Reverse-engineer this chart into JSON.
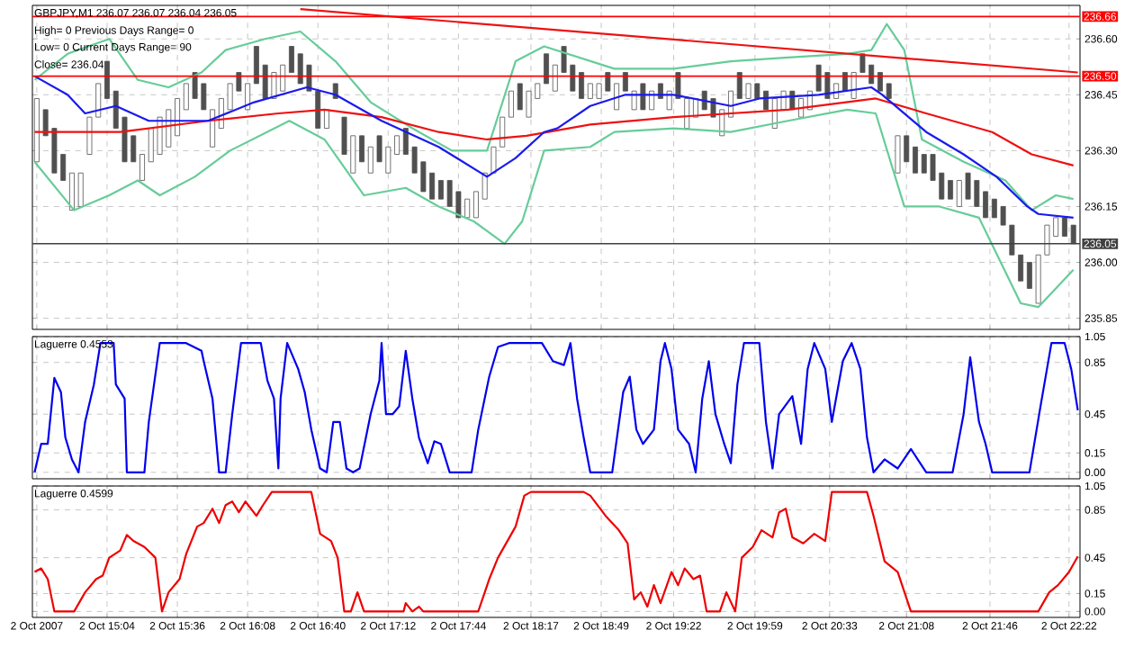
{
  "chart_data": [
    {
      "type": "candlestick",
      "title": "GBPJPY,M1  236.07 236.07 236.04 236.05",
      "annotations": [
        "High= 0   Previous Days Range= 0",
        "Low= 0   Current Days Range= 90",
        "Close= 236.04"
      ],
      "color": "#505050",
      "x": [
        "2007-10-02T14:32",
        "2007-10-02T14:36",
        "2007-10-02T14:40",
        "2007-10-02T14:44",
        "2007-10-02T14:48",
        "2007-10-02T14:52",
        "2007-10-02T14:56",
        "2007-10-02T15:00",
        "2007-10-02T15:04",
        "2007-10-02T15:08",
        "2007-10-02T15:12",
        "2007-10-02T15:16",
        "2007-10-02T15:20",
        "2007-10-02T15:24",
        "2007-10-02T15:28",
        "2007-10-02T15:32",
        "2007-10-02T15:36",
        "2007-10-02T15:40",
        "2007-10-02T15:44",
        "2007-10-02T15:48",
        "2007-10-02T15:52",
        "2007-10-02T15:56",
        "2007-10-02T16:00",
        "2007-10-02T16:04",
        "2007-10-02T16:08",
        "2007-10-02T16:12",
        "2007-10-02T16:16",
        "2007-10-02T16:20",
        "2007-10-02T16:24",
        "2007-10-02T16:28",
        "2007-10-02T16:32",
        "2007-10-02T16:36",
        "2007-10-02T16:40",
        "2007-10-02T16:44",
        "2007-10-02T16:48",
        "2007-10-02T16:52",
        "2007-10-02T16:56",
        "2007-10-02T17:00",
        "2007-10-02T17:04",
        "2007-10-02T17:08",
        "2007-10-02T17:12",
        "2007-10-02T17:16",
        "2007-10-02T17:20",
        "2007-10-02T17:24",
        "2007-10-02T17:28",
        "2007-10-02T17:32",
        "2007-10-02T17:36",
        "2007-10-02T17:40",
        "2007-10-02T17:44",
        "2007-10-02T17:48",
        "2007-10-02T17:52",
        "2007-10-02T17:56",
        "2007-10-02T18:00",
        "2007-10-02T18:04",
        "2007-10-02T18:08",
        "2007-10-02T18:12",
        "2007-10-02T18:16",
        "2007-10-02T18:20",
        "2007-10-02T18:24",
        "2007-10-02T18:28",
        "2007-10-02T18:32",
        "2007-10-02T18:36",
        "2007-10-02T18:40",
        "2007-10-02T18:44",
        "2007-10-02T18:48",
        "2007-10-02T18:52",
        "2007-10-02T18:56",
        "2007-10-02T19:00",
        "2007-10-02T19:04",
        "2007-10-02T19:08",
        "2007-10-02T19:12",
        "2007-10-02T19:16",
        "2007-10-02T19:20",
        "2007-10-02T19:24",
        "2007-10-02T19:28",
        "2007-10-02T19:32",
        "2007-10-02T19:36",
        "2007-10-02T19:40",
        "2007-10-02T19:44",
        "2007-10-02T19:48",
        "2007-10-02T19:52",
        "2007-10-02T19:56",
        "2007-10-02T20:00",
        "2007-10-02T20:04",
        "2007-10-02T20:08",
        "2007-10-02T20:12",
        "2007-10-02T20:16",
        "2007-10-02T20:20",
        "2007-10-02T20:24",
        "2007-10-02T20:28",
        "2007-10-02T20:32",
        "2007-10-02T20:36",
        "2007-10-02T20:40",
        "2007-10-02T20:44",
        "2007-10-02T20:48",
        "2007-10-02T20:52",
        "2007-10-02T20:56",
        "2007-10-02T21:00",
        "2007-10-02T21:04",
        "2007-10-02T21:08",
        "2007-10-02T21:12",
        "2007-10-02T21:16",
        "2007-10-02T21:20",
        "2007-10-02T21:24",
        "2007-10-02T21:28",
        "2007-10-02T21:32",
        "2007-10-02T21:36",
        "2007-10-02T21:40",
        "2007-10-02T21:44",
        "2007-10-02T21:48",
        "2007-10-02T21:52",
        "2007-10-02T21:56",
        "2007-10-02T22:00",
        "2007-10-02T22:04",
        "2007-10-02T22:08",
        "2007-10-02T22:12",
        "2007-10-02T22:16",
        "2007-10-02T22:20",
        "2007-10-02T22:24"
      ],
      "ohlc": [
        [
          236.27,
          236.44,
          236.27,
          236.44
        ],
        [
          236.41,
          236.41,
          236.34,
          236.34
        ],
        [
          236.36,
          236.36,
          236.24,
          236.24
        ],
        [
          236.29,
          236.29,
          236.22,
          236.22
        ],
        [
          236.14,
          236.24,
          236.14,
          236.24
        ],
        [
          236.15,
          236.24,
          236.15,
          236.24
        ],
        [
          236.29,
          236.39,
          236.29,
          236.39
        ],
        [
          236.39,
          236.48,
          236.39,
          236.48
        ],
        [
          236.54,
          236.54,
          236.44,
          236.44
        ],
        [
          236.46,
          236.46,
          236.36,
          236.36
        ],
        [
          236.39,
          236.39,
          236.27,
          236.27
        ],
        [
          236.34,
          236.34,
          236.27,
          236.27
        ],
        [
          236.22,
          236.29,
          236.22,
          236.29
        ],
        [
          236.27,
          236.36,
          236.27,
          236.36
        ],
        [
          236.29,
          236.39,
          236.29,
          236.39
        ],
        [
          236.31,
          236.41,
          236.31,
          236.41
        ],
        [
          236.34,
          236.44,
          236.34,
          236.44
        ],
        [
          236.41,
          236.48,
          236.41,
          236.48
        ],
        [
          236.51,
          236.51,
          236.44,
          236.44
        ],
        [
          236.48,
          236.48,
          236.41,
          236.41
        ],
        [
          236.31,
          236.41,
          236.31,
          236.41
        ],
        [
          236.36,
          236.44,
          236.36,
          236.44
        ],
        [
          236.41,
          236.48,
          236.41,
          236.48
        ],
        [
          236.51,
          236.51,
          236.46,
          236.46
        ],
        [
          236.41,
          236.48,
          236.41,
          236.48
        ],
        [
          236.58,
          236.58,
          236.48,
          236.48
        ],
        [
          236.53,
          236.53,
          236.44,
          236.44
        ],
        [
          236.44,
          236.51,
          236.44,
          236.51
        ],
        [
          236.46,
          236.53,
          236.46,
          236.53
        ],
        [
          236.58,
          236.58,
          236.51,
          236.51
        ],
        [
          236.56,
          236.56,
          236.48,
          236.48
        ],
        [
          236.53,
          236.53,
          236.46,
          236.46
        ],
        [
          236.46,
          236.46,
          236.36,
          236.36
        ],
        [
          236.36,
          236.41,
          236.36,
          236.41
        ],
        [
          236.48,
          236.48,
          236.44,
          236.44
        ],
        [
          236.39,
          236.39,
          236.29,
          236.29
        ],
        [
          236.24,
          236.34,
          236.24,
          236.34
        ],
        [
          236.34,
          236.34,
          236.27,
          236.27
        ],
        [
          236.24,
          236.31,
          236.24,
          236.31
        ],
        [
          236.34,
          236.34,
          236.27,
          236.27
        ],
        [
          236.24,
          236.31,
          236.24,
          236.31
        ],
        [
          236.29,
          236.34,
          236.29,
          236.34
        ],
        [
          236.36,
          236.36,
          236.29,
          236.29
        ],
        [
          236.31,
          236.31,
          236.24,
          236.24
        ],
        [
          236.27,
          236.27,
          236.19,
          236.19
        ],
        [
          236.24,
          236.24,
          236.17,
          236.17
        ],
        [
          236.22,
          236.22,
          236.17,
          236.17
        ],
        [
          236.22,
          236.22,
          236.15,
          236.15
        ],
        [
          236.19,
          236.19,
          236.12,
          236.12
        ],
        [
          236.12,
          236.17,
          236.12,
          236.17
        ],
        [
          236.12,
          236.19,
          236.12,
          236.19
        ],
        [
          236.17,
          236.24,
          236.17,
          236.24
        ],
        [
          236.24,
          236.31,
          236.24,
          236.31
        ],
        [
          236.31,
          236.39,
          236.31,
          236.39
        ],
        [
          236.39,
          236.46,
          236.39,
          236.46
        ],
        [
          236.48,
          236.48,
          236.41,
          236.41
        ],
        [
          236.39,
          236.46,
          236.39,
          236.46
        ],
        [
          236.44,
          236.48,
          236.44,
          236.48
        ],
        [
          236.56,
          236.56,
          236.48,
          236.48
        ],
        [
          236.46,
          236.53,
          236.46,
          236.53
        ],
        [
          236.58,
          236.58,
          236.51,
          236.51
        ],
        [
          236.53,
          236.53,
          236.46,
          236.46
        ],
        [
          236.51,
          236.51,
          236.44,
          236.44
        ],
        [
          236.44,
          236.48,
          236.44,
          236.48
        ],
        [
          236.44,
          236.48,
          236.44,
          236.48
        ],
        [
          236.51,
          236.51,
          236.46,
          236.46
        ],
        [
          236.41,
          236.48,
          236.41,
          236.48
        ],
        [
          236.51,
          236.51,
          236.46,
          236.46
        ],
        [
          236.41,
          236.46,
          236.41,
          236.46
        ],
        [
          236.48,
          236.48,
          236.41,
          236.41
        ],
        [
          236.41,
          236.46,
          236.41,
          236.46
        ],
        [
          236.48,
          236.48,
          236.44,
          236.44
        ],
        [
          236.41,
          236.46,
          236.41,
          236.46
        ],
        [
          236.51,
          236.51,
          236.44,
          236.44
        ],
        [
          236.36,
          236.44,
          236.36,
          236.44
        ],
        [
          236.39,
          236.44,
          236.39,
          236.44
        ],
        [
          236.46,
          236.46,
          236.41,
          236.41
        ],
        [
          236.44,
          236.44,
          236.39,
          236.39
        ],
        [
          236.34,
          236.41,
          236.34,
          236.41
        ],
        [
          236.39,
          236.46,
          236.39,
          236.46
        ],
        [
          236.51,
          236.51,
          236.44,
          236.44
        ],
        [
          236.44,
          236.48,
          236.44,
          236.48
        ],
        [
          236.48,
          236.48,
          236.44,
          236.44
        ],
        [
          236.46,
          236.46,
          236.41,
          236.41
        ],
        [
          236.36,
          236.44,
          236.36,
          236.44
        ],
        [
          236.41,
          236.46,
          236.41,
          236.46
        ],
        [
          236.46,
          236.46,
          236.41,
          236.41
        ],
        [
          236.39,
          236.44,
          236.39,
          236.44
        ],
        [
          236.41,
          236.46,
          236.41,
          236.46
        ],
        [
          236.53,
          236.53,
          236.46,
          236.46
        ],
        [
          236.51,
          236.51,
          236.44,
          236.44
        ],
        [
          236.44,
          236.48,
          236.44,
          236.48
        ],
        [
          236.51,
          236.51,
          236.46,
          236.46
        ],
        [
          236.44,
          236.51,
          236.44,
          236.51
        ],
        [
          236.56,
          236.56,
          236.51,
          236.51
        ],
        [
          236.53,
          236.53,
          236.48,
          236.48
        ],
        [
          236.51,
          236.51,
          236.46,
          236.46
        ],
        [
          236.48,
          236.48,
          236.44,
          236.44
        ],
        [
          236.24,
          236.34,
          236.24,
          236.34
        ],
        [
          236.34,
          236.34,
          236.27,
          236.27
        ],
        [
          236.31,
          236.31,
          236.24,
          236.24
        ],
        [
          236.29,
          236.29,
          236.24,
          236.24
        ],
        [
          236.29,
          236.29,
          236.22,
          236.22
        ],
        [
          236.24,
          236.24,
          236.17,
          236.17
        ],
        [
          236.22,
          236.22,
          236.17,
          236.17
        ],
        [
          236.15,
          236.22,
          236.15,
          236.22
        ],
        [
          236.24,
          236.24,
          236.17,
          236.17
        ],
        [
          236.22,
          236.22,
          236.15,
          236.15
        ],
        [
          236.19,
          236.19,
          236.12,
          236.12
        ],
        [
          236.17,
          236.17,
          236.12,
          236.12
        ],
        [
          236.15,
          236.15,
          236.1,
          236.1
        ],
        [
          236.1,
          236.1,
          236.02,
          236.02
        ],
        [
          236.02,
          236.02,
          235.95,
          235.95
        ],
        [
          236.0,
          236.0,
          235.93,
          235.93
        ],
        [
          235.89,
          236.02,
          235.89,
          236.02
        ],
        [
          236.02,
          236.1,
          236.02,
          236.1
        ],
        [
          236.07,
          236.12,
          236.07,
          236.12
        ],
        [
          236.12,
          236.12,
          236.07,
          236.07
        ],
        [
          236.1,
          236.1,
          236.05,
          236.05
        ]
      ],
      "series": [
        {
          "type": "line",
          "color": "#66cc99",
          "x": [
            "2007-10-02T14:31",
            "2007-10-02T14:46",
            "2007-10-02T15:05",
            "2007-10-02T15:18",
            "2007-10-02T15:32",
            "2007-10-02T15:47",
            "2007-10-02T15:58",
            "2007-10-02T16:16",
            "2007-10-02T16:32",
            "2007-10-02T16:48",
            "2007-10-02T17:04",
            "2007-10-02T17:23",
            "2007-10-02T17:41",
            "2007-10-02T17:57",
            "2007-10-02T18:10",
            "2007-10-02T18:23",
            "2007-10-02T18:55",
            "2007-10-02T19:22",
            "2007-10-02T19:48",
            "2007-10-02T20:14",
            "2007-10-02T20:41",
            "2007-10-02T20:52",
            "2007-10-02T20:59",
            "2007-10-02T21:07",
            "2007-10-02T21:15",
            "2007-10-02T21:34",
            "2007-10-02T21:53",
            "2007-10-02T22:05",
            "2007-10-02T22:16",
            "2007-10-02T22:24"
          ],
          "values": [
            236.49,
            236.56,
            236.6,
            236.49,
            236.47,
            236.51,
            236.57,
            236.6,
            236.62,
            236.54,
            236.43,
            236.36,
            236.3,
            236.3,
            236.54,
            236.58,
            236.52,
            236.52,
            236.54,
            236.55,
            236.56,
            236.57,
            236.64,
            236.57,
            236.33,
            236.27,
            236.22,
            236.14,
            236.18,
            236.17
          ]
        },
        {
          "type": "line",
          "color": "#66cc99",
          "x": [
            "2007-10-02T14:31",
            "2007-10-02T14:49",
            "2007-10-02T15:05",
            "2007-10-02T15:18",
            "2007-10-02T15:28",
            "2007-10-02T15:44",
            "2007-10-02T16:00",
            "2007-10-02T16:27",
            "2007-10-02T16:43",
            "2007-10-02T17:01",
            "2007-10-02T17:20",
            "2007-10-02T17:35",
            "2007-10-02T17:51",
            "2007-10-02T18:05",
            "2007-10-02T18:13",
            "2007-10-02T18:23",
            "2007-10-02T18:44",
            "2007-10-02T18:55",
            "2007-10-02T19:22",
            "2007-10-02T19:48",
            "2007-10-02T20:14",
            "2007-10-02T20:41",
            "2007-10-02T20:54",
            "2007-10-02T21:07",
            "2007-10-02T21:23",
            "2007-10-02T21:41",
            "2007-10-02T22:00",
            "2007-10-02T22:08",
            "2007-10-02T22:24"
          ],
          "values": [
            236.27,
            236.14,
            236.18,
            236.22,
            236.18,
            236.23,
            236.3,
            236.38,
            236.33,
            236.18,
            236.2,
            236.15,
            236.11,
            236.05,
            236.11,
            236.3,
            236.31,
            236.35,
            236.36,
            236.35,
            236.38,
            236.41,
            236.4,
            236.15,
            236.15,
            236.12,
            235.89,
            235.88,
            235.98
          ]
        },
        {
          "type": "line",
          "color": "#ee1111",
          "x": [
            "2007-10-02T14:31",
            "2007-10-02T15:10",
            "2007-10-02T15:50",
            "2007-10-02T16:22",
            "2007-10-02T16:43",
            "2007-10-02T17:09",
            "2007-10-02T17:35",
            "2007-10-02T17:57",
            "2007-10-02T18:15",
            "2007-10-02T18:44",
            "2007-10-02T19:22",
            "2007-10-02T20:14",
            "2007-10-02T20:54",
            "2007-10-02T21:17",
            "2007-10-02T21:47",
            "2007-10-02T22:05",
            "2007-10-02T22:24"
          ],
          "values": [
            236.35,
            236.35,
            236.38,
            236.4,
            236.41,
            236.39,
            236.35,
            236.33,
            236.34,
            236.37,
            236.39,
            236.41,
            236.44,
            236.4,
            236.35,
            236.29,
            236.26
          ]
        },
        {
          "type": "line",
          "color": "#1a1aee",
          "x": [
            "2007-10-02T14:31",
            "2007-10-02T14:46",
            "2007-10-02T14:54",
            "2007-10-02T15:08",
            "2007-10-02T15:23",
            "2007-10-02T15:50",
            "2007-10-02T16:11",
            "2007-10-02T16:35",
            "2007-10-02T16:48",
            "2007-10-02T17:09",
            "2007-10-02T17:35",
            "2007-10-02T17:57",
            "2007-10-02T18:10",
            "2007-10-02T18:23",
            "2007-10-02T18:29",
            "2007-10-02T18:44",
            "2007-10-02T19:00",
            "2007-10-02T19:22",
            "2007-10-02T19:48",
            "2007-10-02T20:01",
            "2007-10-02T20:28",
            "2007-10-02T20:52",
            "2007-10-02T20:57",
            "2007-10-02T21:17",
            "2007-10-02T21:34",
            "2007-10-02T21:49",
            "2007-10-02T22:03",
            "2007-10-02T22:08",
            "2007-10-02T22:24"
          ],
          "values": [
            236.5,
            236.45,
            236.4,
            236.42,
            236.38,
            236.38,
            236.43,
            236.47,
            236.45,
            236.38,
            236.31,
            236.23,
            236.28,
            236.35,
            236.36,
            236.42,
            236.45,
            236.45,
            236.42,
            236.44,
            236.45,
            236.47,
            236.45,
            236.35,
            236.29,
            236.23,
            236.15,
            236.13,
            236.12
          ]
        },
        {
          "type": "line",
          "color": "#ee1111",
          "x": [
            "2007-10-02T16:32",
            "2007-10-02T22:26"
          ],
          "values": [
            236.68,
            236.51
          ]
        }
      ],
      "xlim": [
        "2007-10-02T14:30",
        "2007-10-02T22:27"
      ],
      "xticks": [
        {
          "value": "2007-10-02T14:32",
          "label": null
        },
        {
          "value": "2007-10-02T15:04",
          "label": null
        },
        {
          "value": "2007-10-02T15:36",
          "label": null
        },
        {
          "value": "2007-10-02T16:08",
          "label": null
        },
        {
          "value": "2007-10-02T16:40",
          "label": null
        },
        {
          "value": "2007-10-02T17:12",
          "label": null
        },
        {
          "value": "2007-10-02T17:44",
          "label": null
        },
        {
          "value": "2007-10-02T18:17",
          "label": null
        },
        {
          "value": "2007-10-02T18:49",
          "label": null
        },
        {
          "value": "2007-10-02T19:22",
          "label": null
        },
        {
          "value": "2007-10-02T19:59",
          "label": null
        },
        {
          "value": "2007-10-02T20:33",
          "label": null
        },
        {
          "value": "2007-10-02T21:08",
          "label": null
        },
        {
          "value": "2007-10-02T21:46",
          "label": null
        },
        {
          "value": "2007-10-02T22:22",
          "label": null
        }
      ],
      "ylim": [
        235.82,
        236.69
      ],
      "yticks": [
        235.85,
        {
          "value": 236,
          "label": "236.00"
        },
        236.15,
        {
          "value": 236.3,
          "label": "236.30"
        },
        236.45,
        {
          "value": 236.6,
          "label": "236.60"
        }
      ],
      "grid": true,
      "tick_labels": "y",
      "ref_lines": [
        {
          "axis": "y",
          "value": 236.66,
          "label": "236.66",
          "color": "#ff0000"
        },
        {
          "axis": "y",
          "value": 236.5,
          "label": "236.50",
          "color": "#ff0000"
        },
        {
          "axis": "y",
          "value": 236.05,
          "label": "236.05",
          "color": "#404040"
        }
      ]
    },
    {
      "type": "line",
      "title": "Laguerre 0.4553",
      "series": [
        {
          "color": "#0000ee",
          "x": [
            "2007-10-02T14:31",
            "2007-10-02T14:34",
            "2007-10-02T14:37",
            "2007-10-02T14:40",
            "2007-10-02T14:43",
            "2007-10-02T14:45",
            "2007-10-02T14:48",
            "2007-10-02T14:51",
            "2007-10-02T14:54",
            "2007-10-02T14:58",
            "2007-10-02T15:01",
            "2007-10-02T15:07",
            "2007-10-02T15:08",
            "2007-10-02T15:12",
            "2007-10-02T15:13",
            "2007-10-02T15:21",
            "2007-10-02T15:23",
            "2007-10-02T15:28",
            "2007-10-02T15:40",
            "2007-10-02T15:47",
            "2007-10-02T15:48",
            "2007-10-02T15:52",
            "2007-10-02T15:55",
            "2007-10-02T15:58",
            "2007-10-02T16:01",
            "2007-10-02T16:05",
            "2007-10-02T16:14",
            "2007-10-02T16:17",
            "2007-10-02T16:20",
            "2007-10-02T16:22",
            "2007-10-02T16:23",
            "2007-10-02T16:26",
            "2007-10-02T16:31",
            "2007-10-02T16:34",
            "2007-10-02T16:37",
            "2007-10-02T16:41",
            "2007-10-02T16:44",
            "2007-10-02T16:47",
            "2007-10-02T16:50",
            "2007-10-02T16:53",
            "2007-10-02T16:56",
            "2007-10-02T16:59",
            "2007-10-02T17:04",
            "2007-10-02T17:08",
            "2007-10-02T17:09",
            "2007-10-02T17:11",
            "2007-10-02T17:14",
            "2007-10-02T17:17",
            "2007-10-02T17:20",
            "2007-10-02T17:23",
            "2007-10-02T17:26",
            "2007-10-02T17:30",
            "2007-10-02T17:33",
            "2007-10-02T17:36",
            "2007-10-02T17:40",
            "2007-10-02T17:50",
            "2007-10-02T17:53",
            "2007-10-02T17:58",
            "2007-10-02T18:02",
            "2007-10-02T18:07",
            "2007-10-02T18:22",
            "2007-10-02T18:27",
            "2007-10-02T18:32",
            "2007-10-02T18:35",
            "2007-10-02T18:38",
            "2007-10-02T18:41",
            "2007-10-02T18:44",
            "2007-10-02T18:54",
            "2007-10-02T18:59",
            "2007-10-02T19:02",
            "2007-10-02T19:05",
            "2007-10-02T19:08",
            "2007-10-02T19:13",
            "2007-10-02T19:16",
            "2007-10-02T19:18",
            "2007-10-02T19:21",
            "2007-10-02T19:24",
            "2007-10-02T19:29",
            "2007-10-02T19:32",
            "2007-10-02T19:35",
            "2007-10-02T19:38",
            "2007-10-02T19:41",
            "2007-10-02T19:45",
            "2007-10-02T19:48",
            "2007-10-02T19:51",
            "2007-10-02T19:54",
            "2007-10-02T20:01",
            "2007-10-02T20:04",
            "2007-10-02T20:07",
            "2007-10-02T20:10",
            "2007-10-02T20:16",
            "2007-10-02T20:20",
            "2007-10-02T20:23",
            "2007-10-02T20:26",
            "2007-10-02T20:31",
            "2007-10-02T20:34",
            "2007-10-02T20:39",
            "2007-10-02T20:43",
            "2007-10-02T20:47",
            "2007-10-02T20:50",
            "2007-10-02T20:53",
            "2007-10-02T20:58",
            "2007-10-02T21:04",
            "2007-10-02T21:10",
            "2007-10-02T21:17",
            "2007-10-02T21:29",
            "2007-10-02T21:34",
            "2007-10-02T21:37",
            "2007-10-02T21:41",
            "2007-10-02T21:44",
            "2007-10-02T21:47",
            "2007-10-02T22:04",
            "2007-10-02T22:09",
            "2007-10-02T22:14",
            "2007-10-02T22:20",
            "2007-10-02T22:23",
            "2007-10-02T22:26"
          ],
          "values": [
            0,
            0.22,
            0.22,
            0.73,
            0.62,
            0.27,
            0.1,
            0,
            0.39,
            0.68,
            1,
            1,
            0.68,
            0.57,
            0,
            0,
            0.39,
            1,
            1,
            0.94,
            0.86,
            0.57,
            0,
            0,
            0.45,
            1,
            1,
            0.71,
            0.57,
            0.03,
            0.57,
            1,
            0.8,
            0.62,
            0.33,
            0.03,
            0,
            0.39,
            0.39,
            0.03,
            0,
            0.03,
            0.45,
            0.71,
            1,
            0.45,
            0.45,
            0.51,
            0.94,
            0.57,
            0.27,
            0.07,
            0.24,
            0.22,
            0,
            0,
            0.33,
            0.74,
            0.97,
            1,
            1,
            0.86,
            0.83,
            1,
            0.57,
            0.27,
            0,
            0,
            0.62,
            0.74,
            0.33,
            0.22,
            0.33,
            0.86,
            1,
            0.8,
            0.33,
            0.22,
            0,
            0.57,
            0.86,
            0.45,
            0.22,
            0.07,
            0.68,
            1,
            1,
            0.39,
            0.03,
            0.45,
            0.59,
            0.22,
            0.8,
            1,
            0.8,
            0.39,
            0.86,
            1,
            0.8,
            0.27,
            0,
            0.1,
            0.03,
            0.18,
            0,
            0,
            0.45,
            0.89,
            0.39,
            0.22,
            0,
            0,
            0.51,
            1,
            1,
            0.8,
            0.48
          ]
        }
      ],
      "xlim": [
        "2007-10-02T14:30",
        "2007-10-02T22:27"
      ],
      "xticks": [
        {
          "value": "2007-10-02T14:32",
          "label": null
        },
        {
          "value": "2007-10-02T15:04",
          "label": null
        },
        {
          "value": "2007-10-02T15:36",
          "label": null
        },
        {
          "value": "2007-10-02T16:08",
          "label": null
        },
        {
          "value": "2007-10-02T16:40",
          "label": null
        },
        {
          "value": "2007-10-02T17:12",
          "label": null
        },
        {
          "value": "2007-10-02T17:44",
          "label": null
        },
        {
          "value": "2007-10-02T18:17",
          "label": null
        },
        {
          "value": "2007-10-02T18:49",
          "label": null
        },
        {
          "value": "2007-10-02T19:22",
          "label": null
        },
        {
          "value": "2007-10-02T19:59",
          "label": null
        },
        {
          "value": "2007-10-02T20:33",
          "label": null
        },
        {
          "value": "2007-10-02T21:08",
          "label": null
        },
        {
          "value": "2007-10-02T21:46",
          "label": null
        },
        {
          "value": "2007-10-02T22:22",
          "label": null
        }
      ],
      "ylim": [
        -0.05,
        1.05
      ],
      "yticks": [
        {
          "value": 0,
          "label": "0.00"
        },
        0.15,
        0.45,
        0.85,
        1.05
      ],
      "grid": true,
      "tick_labels": "y"
    },
    {
      "type": "line",
      "title": "Laguerre 0.4599",
      "series": [
        {
          "color": "#ee0000",
          "x": [
            "2007-10-02T14:31",
            "2007-10-02T14:34",
            "2007-10-02T14:37",
            "2007-10-02T14:40",
            "2007-10-02T14:49",
            "2007-10-02T14:54",
            "2007-10-02T14:59",
            "2007-10-02T15:02",
            "2007-10-02T15:05",
            "2007-10-02T15:10",
            "2007-10-02T15:13",
            "2007-10-02T15:16",
            "2007-10-02T15:21",
            "2007-10-02T15:26",
            "2007-10-02T15:29",
            "2007-10-02T15:32",
            "2007-10-02T15:37",
            "2007-10-02T15:40",
            "2007-10-02T15:45",
            "2007-10-02T15:48",
            "2007-10-02T15:52",
            "2007-10-02T15:55",
            "2007-10-02T15:58",
            "2007-10-02T16:01",
            "2007-10-02T16:04",
            "2007-10-02T16:07",
            "2007-10-02T16:12",
            "2007-10-02T16:15",
            "2007-10-02T16:19",
            "2007-10-02T16:37",
            "2007-10-02T16:41",
            "2007-10-02T16:46",
            "2007-10-02T16:49",
            "2007-10-02T16:52",
            "2007-10-02T16:55",
            "2007-10-02T16:58",
            "2007-10-02T17:01",
            "2007-10-02T17:19",
            "2007-10-02T17:20",
            "2007-10-02T17:23",
            "2007-10-02T17:26",
            "2007-10-02T17:28",
            "2007-10-02T17:53",
            "2007-10-02T17:58",
            "2007-10-02T18:02",
            "2007-10-02T18:10",
            "2007-10-02T18:14",
            "2007-10-02T18:17",
            "2007-10-02T18:41",
            "2007-10-02T18:44",
            "2007-10-02T18:51",
            "2007-10-02T18:57",
            "2007-10-02T19:01",
            "2007-10-02T19:04",
            "2007-10-02T19:07",
            "2007-10-02T19:10",
            "2007-10-02T19:13",
            "2007-10-02T19:16",
            "2007-10-02T19:21",
            "2007-10-02T19:24",
            "2007-10-02T19:27",
            "2007-10-02T19:31",
            "2007-10-02T19:34",
            "2007-10-02T19:37",
            "2007-10-02T19:43",
            "2007-10-02T19:46",
            "2007-10-02T19:50",
            "2007-10-02T19:53",
            "2007-10-02T19:58",
            "2007-10-02T20:02",
            "2007-10-02T20:07",
            "2007-10-02T20:10",
            "2007-10-02T20:13",
            "2007-10-02T20:16",
            "2007-10-02T20:21",
            "2007-10-02T20:26",
            "2007-10-02T20:31",
            "2007-10-02T20:34",
            "2007-10-02T20:39",
            "2007-10-02T20:43",
            "2007-10-02T20:50",
            "2007-10-02T20:53",
            "2007-10-02T20:58",
            "2007-10-02T21:04",
            "2007-10-02T21:10",
            "2007-10-02T22:08",
            "2007-10-02T22:13",
            "2007-10-02T22:17",
            "2007-10-02T22:22",
            "2007-10-02T22:26"
          ],
          "values": [
            0.33,
            0.36,
            0.27,
            0,
            0,
            0.16,
            0.27,
            0.3,
            0.45,
            0.51,
            0.64,
            0.59,
            0.54,
            0.45,
            0,
            0.16,
            0.27,
            0.48,
            0.71,
            0.74,
            0.86,
            0.74,
            0.89,
            0.92,
            0.83,
            0.92,
            0.8,
            0.89,
            1,
            1,
            0.65,
            0.59,
            0.45,
            0,
            0,
            0.16,
            0,
            0,
            0.07,
            0,
            0.04,
            0,
            0,
            0.27,
            0.45,
            0.71,
            0.97,
            1,
            1,
            0.97,
            0.8,
            0.68,
            0.57,
            0.1,
            0.16,
            0.04,
            0.22,
            0.07,
            0.33,
            0.22,
            0.36,
            0.27,
            0.3,
            0,
            0,
            0.16,
            0,
            0.45,
            0.54,
            0.68,
            0.62,
            0.83,
            0.86,
            0.62,
            0.57,
            0.65,
            0.59,
            1,
            1,
            1,
            1,
            0.8,
            0.42,
            0.33,
            0,
            0,
            0.16,
            0.22,
            0.33,
            0.46
          ]
        }
      ],
      "xlim": [
        "2007-10-02T14:30",
        "2007-10-02T22:27"
      ],
      "xticks": [
        {
          "value": "2007-10-02T14:32",
          "label": "2 Oct 2007"
        },
        {
          "value": "2007-10-02T15:04",
          "label": "2 Oct 15:04"
        },
        {
          "value": "2007-10-02T15:36",
          "label": "2 Oct 15:36"
        },
        {
          "value": "2007-10-02T16:08",
          "label": "2 Oct 16:08"
        },
        {
          "value": "2007-10-02T16:40",
          "label": "2 Oct 16:40"
        },
        {
          "value": "2007-10-02T17:12",
          "label": "2 Oct 17:12"
        },
        {
          "value": "2007-10-02T17:44",
          "label": "2 Oct 17:44"
        },
        {
          "value": "2007-10-02T18:17",
          "label": "2 Oct 18:17"
        },
        {
          "value": "2007-10-02T18:49",
          "label": "2 Oct 18:49"
        },
        {
          "value": "2007-10-02T19:22",
          "label": "2 Oct 19:22"
        },
        {
          "value": "2007-10-02T19:59",
          "label": "2 Oct 19:59"
        },
        {
          "value": "2007-10-02T20:33",
          "label": "2 Oct 20:33"
        },
        {
          "value": "2007-10-02T21:08",
          "label": "2 Oct 21:08"
        },
        {
          "value": "2007-10-02T21:46",
          "label": "2 Oct 21:46"
        },
        {
          "value": "2007-10-02T22:22",
          "label": "2 Oct 22:22"
        }
      ],
      "ylim": [
        -0.05,
        1.05
      ],
      "yticks": [
        {
          "value": 0,
          "label": "0.00"
        },
        0.15,
        0.45,
        0.85,
        1.05
      ],
      "grid": true
    }
  ]
}
